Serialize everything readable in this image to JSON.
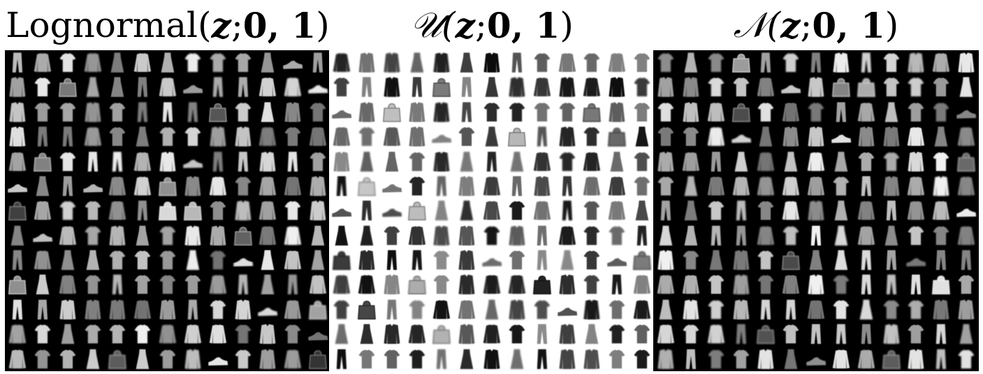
{
  "figure": {
    "panels": [
      {
        "id": "lognormal",
        "title_prefix": "Lognormal(",
        "title_var": "z",
        "title_sep": "; ",
        "title_params": "0, 1",
        "title_suffix": ")",
        "background": "#000000",
        "ink": "#ffffff",
        "style": "light samples on dark background"
      },
      {
        "id": "uniform",
        "title_prefix": "𝒰(",
        "title_var": "z",
        "title_sep": "; ",
        "title_params": "0, 1",
        "title_suffix": ")",
        "background": "#ffffff",
        "ink": "#000000",
        "style": "dark samples on light background"
      },
      {
        "id": "normal",
        "title_prefix": "𝒩(",
        "title_var": "z",
        "title_sep": "; ",
        "title_params": "0, 1",
        "title_suffix": ")",
        "background": "#000000",
        "ink": "#ffffff",
        "style": "light samples on dark background"
      }
    ],
    "grid_rows": 13,
    "grid_cols": 13,
    "sample_shapes": [
      "shirt",
      "pullover",
      "trouser",
      "dress",
      "coat",
      "sneaker",
      "bag"
    ]
  }
}
